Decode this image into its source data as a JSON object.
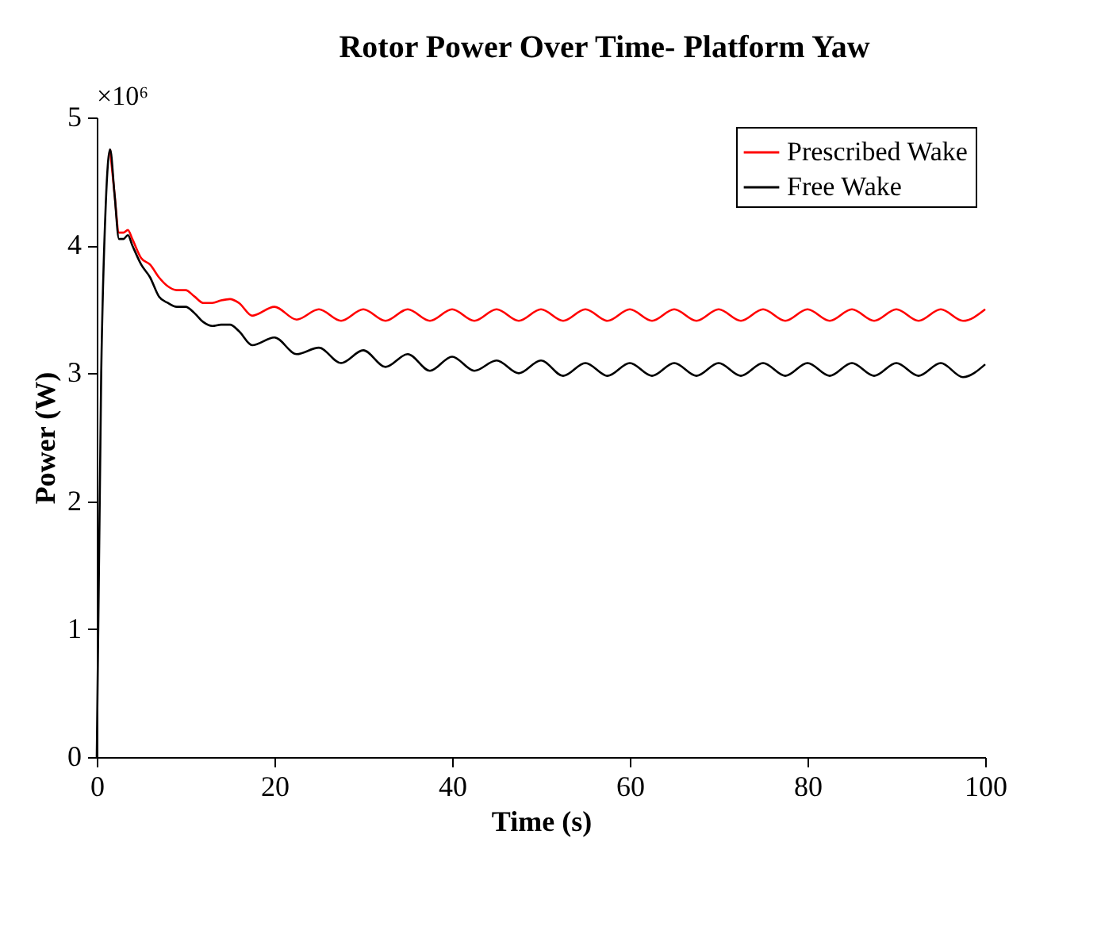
{
  "chart_data": {
    "type": "line",
    "title": "Rotor Power Over Time- Platform Yaw",
    "xlabel": "Time (s)",
    "ylabel": "Power (W)",
    "annotations": [
      "×10⁶"
    ],
    "xlim": [
      0,
      100
    ],
    "xticks": [
      0,
      20,
      40,
      60,
      80,
      100
    ],
    "ylim": [
      0,
      5
    ],
    "yticks": [
      0,
      1,
      2,
      3,
      4,
      5
    ],
    "grid": false,
    "legend": "top right",
    "line_style": "solid",
    "marker": "none",
    "series": [
      {
        "name": "Prescribed Wake",
        "color": "#ff0000",
        "x": [
          1.5,
          2,
          2.5,
          3,
          3.5,
          4,
          5,
          6,
          7,
          8,
          9,
          10,
          11,
          12,
          13,
          14,
          15,
          16,
          17.5,
          20,
          22.5,
          25,
          27.5,
          30,
          32.5,
          35,
          37.5,
          40,
          42.5,
          45,
          47.5,
          50,
          52.5,
          55,
          57.5,
          60,
          62.5,
          65,
          67.5,
          70,
          72.5,
          75,
          77.5,
          80,
          82.5,
          85,
          87.5,
          90,
          92.5,
          95,
          97.5,
          100
        ],
        "values": [
          4.75,
          4.4,
          4.1,
          4.1,
          4.12,
          4.05,
          3.9,
          3.85,
          3.75,
          3.68,
          3.65,
          3.65,
          3.6,
          3.55,
          3.55,
          3.57,
          3.58,
          3.55,
          3.45,
          3.52,
          3.42,
          3.5,
          3.41,
          3.5,
          3.41,
          3.5,
          3.41,
          3.5,
          3.41,
          3.5,
          3.41,
          3.5,
          3.41,
          3.5,
          3.41,
          3.5,
          3.41,
          3.5,
          3.41,
          3.5,
          3.41,
          3.5,
          3.41,
          3.5,
          3.41,
          3.5,
          3.41,
          3.5,
          3.41,
          3.5,
          3.41,
          3.5
        ]
      },
      {
        "name": "Free Wake",
        "color": "#000000",
        "x": [
          0,
          0.5,
          1,
          1.5,
          2,
          2.5,
          3,
          3.5,
          4,
          5,
          6,
          7,
          8,
          9,
          10,
          11,
          12,
          13,
          14,
          15,
          16,
          17.5,
          20,
          22.5,
          25,
          27.5,
          30,
          32.5,
          35,
          37.5,
          40,
          42.5,
          45,
          47.5,
          50,
          52.5,
          55,
          57.5,
          60,
          62.5,
          65,
          67.5,
          70,
          72.5,
          75,
          77.5,
          80,
          82.5,
          85,
          87.5,
          90,
          92.5,
          95,
          97.5,
          100
        ],
        "values": [
          0,
          3.0,
          4.3,
          4.75,
          4.4,
          4.05,
          4.05,
          4.08,
          4.0,
          3.85,
          3.75,
          3.6,
          3.55,
          3.52,
          3.52,
          3.47,
          3.4,
          3.37,
          3.38,
          3.38,
          3.33,
          3.22,
          3.28,
          3.15,
          3.2,
          3.08,
          3.18,
          3.05,
          3.15,
          3.02,
          3.13,
          3.02,
          3.1,
          3.0,
          3.1,
          2.98,
          3.08,
          2.98,
          3.08,
          2.98,
          3.08,
          2.98,
          3.08,
          2.98,
          3.08,
          2.98,
          3.08,
          2.98,
          3.08,
          2.98,
          3.08,
          2.98,
          3.08,
          2.97,
          3.07
        ]
      }
    ]
  }
}
